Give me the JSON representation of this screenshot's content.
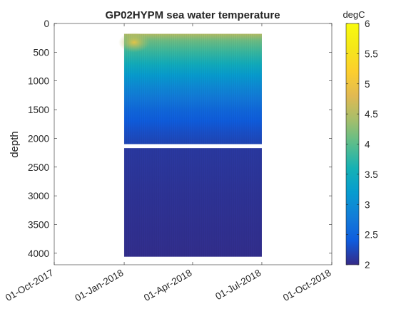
{
  "chart_data": {
    "type": "heatmap",
    "title": "GP02HYPM sea water temperature",
    "xlabel": "",
    "ylabel": "depth",
    "x_axis": {
      "type": "date",
      "range": [
        "2017-10-01",
        "2018-10-01"
      ],
      "ticks": [
        {
          "value": "2017-10-01",
          "label": "01-Oct-2017"
        },
        {
          "value": "2018-01-01",
          "label": "01-Jan-2018"
        },
        {
          "value": "2018-04-01",
          "label": "01-Apr-2018"
        },
        {
          "value": "2018-07-01",
          "label": "01-Jul-2018"
        },
        {
          "value": "2018-10-01",
          "label": "01-Oct-2018"
        }
      ]
    },
    "y_axis": {
      "reversed": true,
      "range": [
        0,
        4200
      ],
      "ticks": [
        0,
        500,
        1000,
        1500,
        2000,
        2500,
        3000,
        3500,
        4000
      ]
    },
    "colorbar": {
      "label": "degC",
      "range": [
        2,
        6
      ],
      "ticks": [
        "2",
        "2.5",
        "3",
        "3.5",
        "4",
        "4.5",
        "5",
        "5.5",
        "6"
      ],
      "colormap": "parula"
    },
    "data_extent": {
      "time_start": "2018-01-01",
      "time_end": "2018-07-01",
      "depth_top": 180,
      "depth_bottom": 4060,
      "gap_depth_range": [
        2100,
        2170
      ]
    },
    "temperature_profile": [
      {
        "depth": 180,
        "temp": 4.5
      },
      {
        "depth": 300,
        "temp": 4.1
      },
      {
        "depth": 500,
        "temp": 3.8
      },
      {
        "depth": 700,
        "temp": 3.5
      },
      {
        "depth": 900,
        "temp": 3.2
      },
      {
        "depth": 1100,
        "temp": 2.95
      },
      {
        "depth": 1300,
        "temp": 2.75
      },
      {
        "depth": 1500,
        "temp": 2.55
      },
      {
        "depth": 1700,
        "temp": 2.4
      },
      {
        "depth": 1900,
        "temp": 2.3
      },
      {
        "depth": 2100,
        "temp": 2.22
      },
      {
        "depth": 2170,
        "temp": 2.12
      },
      {
        "depth": 3000,
        "temp": 2.07
      },
      {
        "depth": 4060,
        "temp": 2.03
      }
    ],
    "grid": false,
    "box": true
  }
}
